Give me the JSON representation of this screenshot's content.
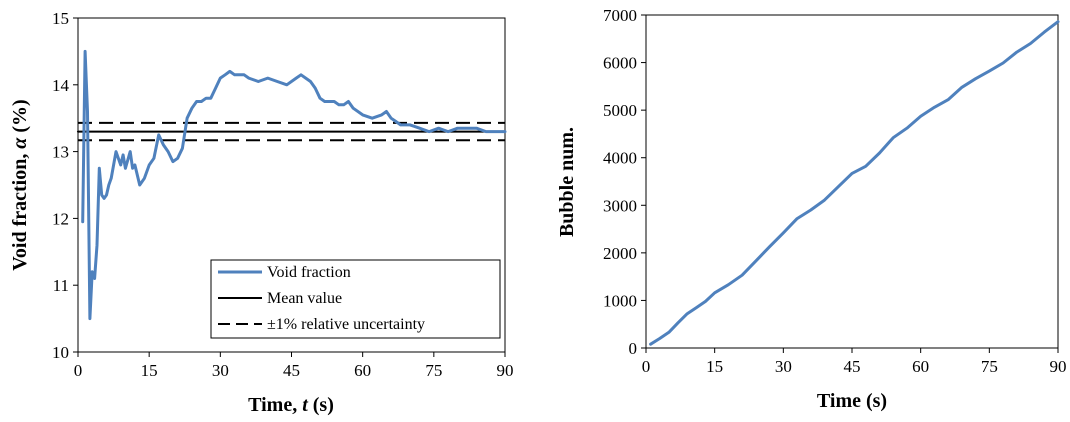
{
  "chart_data": [
    {
      "type": "line",
      "xlabel_main": "Time, ",
      "xlabel_var": "t",
      "xlabel_unit": " (s)",
      "ylabel_main": "Void fraction, ",
      "ylabel_var": "α",
      "ylabel_unit": " (%)",
      "xlim": [
        0,
        90
      ],
      "ylim": [
        10,
        15
      ],
      "xticks": [
        "0",
        "15",
        "30",
        "45",
        "60",
        "75",
        "90"
      ],
      "yticks": [
        "10",
        "11",
        "12",
        "13",
        "14",
        "15"
      ],
      "grid": false,
      "legend_position": "bottom-right",
      "series": [
        {
          "name": "Void fraction",
          "color": "#4f81bd",
          "style": "solid",
          "x": [
            1,
            1.5,
            2,
            2.5,
            3,
            3.5,
            4,
            4.5,
            5,
            5.5,
            6,
            6.5,
            7,
            8,
            9,
            9.5,
            10,
            11,
            11.5,
            12,
            13,
            14,
            15,
            16,
            17,
            18,
            19,
            20,
            21,
            22,
            23,
            24,
            25,
            26,
            27,
            28,
            29,
            30,
            31,
            32,
            33,
            34,
            35,
            36,
            38,
            40,
            42,
            44,
            46,
            47,
            48,
            49,
            50,
            51,
            52,
            53,
            54,
            55,
            56,
            57,
            58,
            60,
            62,
            64,
            65,
            66,
            67,
            68,
            70,
            72,
            74,
            76,
            78,
            80,
            82,
            84,
            86,
            88,
            90
          ],
          "y": [
            11.95,
            14.5,
            13.6,
            10.5,
            11.2,
            11.1,
            11.6,
            12.75,
            12.35,
            12.3,
            12.35,
            12.5,
            12.6,
            13.0,
            12.8,
            12.95,
            12.75,
            13.0,
            12.75,
            12.8,
            12.5,
            12.6,
            12.8,
            12.9,
            13.25,
            13.1,
            13.0,
            12.85,
            12.9,
            13.05,
            13.5,
            13.65,
            13.75,
            13.75,
            13.8,
            13.8,
            13.95,
            14.1,
            14.15,
            14.2,
            14.15,
            14.15,
            14.15,
            14.1,
            14.05,
            14.1,
            14.05,
            14.0,
            14.1,
            14.15,
            14.1,
            14.05,
            13.95,
            13.8,
            13.75,
            13.75,
            13.75,
            13.7,
            13.7,
            13.75,
            13.65,
            13.55,
            13.5,
            13.55,
            13.6,
            13.5,
            13.45,
            13.4,
            13.4,
            13.35,
            13.3,
            13.35,
            13.3,
            13.35,
            13.35,
            13.35,
            13.3,
            13.3,
            13.3
          ]
        },
        {
          "name": "Mean value",
          "color": "#000000",
          "style": "solid",
          "x": [
            0,
            90
          ],
          "y": [
            13.3,
            13.3
          ]
        },
        {
          "name": "±1% relative uncertainty",
          "color": "#000000",
          "style": "dashed",
          "x": [
            0,
            90
          ],
          "y": [
            13.43,
            13.43
          ]
        },
        {
          "name": "",
          "color": "#000000",
          "style": "dashed",
          "x": [
            0,
            90
          ],
          "y": [
            13.17,
            13.17
          ]
        }
      ]
    },
    {
      "type": "line",
      "xlabel": "Time (s)",
      "ylabel": "Bubble num.",
      "xlim": [
        0,
        90
      ],
      "ylim": [
        0,
        7000
      ],
      "xticks": [
        "0",
        "15",
        "30",
        "45",
        "60",
        "75",
        "90"
      ],
      "yticks": [
        "0",
        "1000",
        "2000",
        "3000",
        "4000",
        "5000",
        "6000",
        "7000"
      ],
      "grid": false,
      "series": [
        {
          "color": "#4f81bd",
          "x": [
            1,
            3,
            5,
            7,
            9,
            11,
            13,
            15,
            18,
            21,
            24,
            27,
            30,
            33,
            36,
            39,
            42,
            45,
            48,
            51,
            54,
            57,
            60,
            63,
            66,
            69,
            72,
            75,
            78,
            81,
            84,
            87,
            90
          ],
          "y": [
            80,
            200,
            330,
            530,
            720,
            850,
            980,
            1160,
            1330,
            1530,
            1830,
            2130,
            2420,
            2720,
            2900,
            3110,
            3390,
            3670,
            3820,
            4100,
            4420,
            4620,
            4870,
            5060,
            5220,
            5480,
            5660,
            5820,
            5990,
            6220,
            6400,
            6640,
            6860
          ]
        }
      ]
    }
  ]
}
